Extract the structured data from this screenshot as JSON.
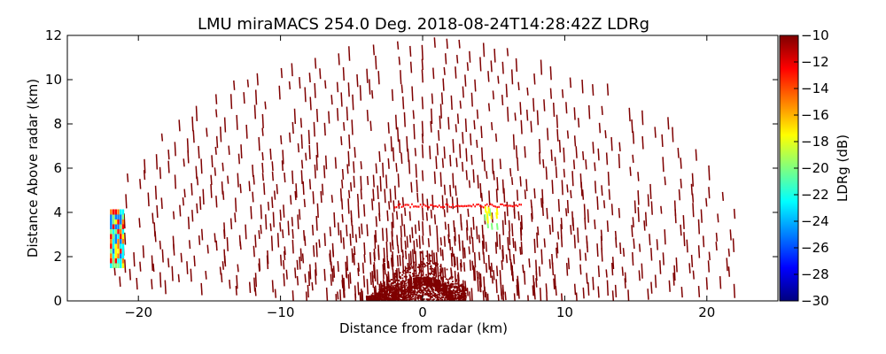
{
  "chart_data": {
    "type": "heatmap",
    "subtype": "RHI radar scan (LDR)",
    "title": "LMU miraMACS 254.0 Deg. 2018-08-24T14:28:42Z  LDRg",
    "xlabel": "Distance from radar (km)",
    "ylabel": "Distance Above radar  (km)",
    "xlim": [
      -25,
      25
    ],
    "ylim": [
      0,
      12
    ],
    "xticks": [
      -20,
      -10,
      0,
      10,
      20
    ],
    "yticks": [
      0,
      2,
      4,
      6,
      8,
      10,
      12
    ],
    "colorbar": {
      "label": "LDRg (dB)",
      "range": [
        -30,
        -10
      ],
      "ticks": [
        -30,
        -28,
        -26,
        -24,
        -22,
        -20,
        -18,
        -16,
        -14,
        -12,
        -10
      ],
      "colormap": [
        "#00007f",
        "#0000ff",
        "#007fff",
        "#00ffff",
        "#7fff7f",
        "#ffff00",
        "#ff7f00",
        "#ff0000",
        "#7f0000"
      ]
    },
    "features": [
      {
        "name": "dense near-radar clutter",
        "x_range_km": [
          -4,
          3
        ],
        "height_range_km": [
          0,
          2.5
        ],
        "ldr_db": -10
      },
      {
        "name": "melting layer band",
        "x_range_km": [
          -2,
          7
        ],
        "height_km": 4.3,
        "ldr_db": -12
      },
      {
        "name": "depolarized patch",
        "x_km": 4.8,
        "height_range_km": [
          3.5,
          4.3
        ],
        "ldr_db": -18
      },
      {
        "name": "far-left echo column",
        "x_km": -22,
        "height_range_km": [
          1.5,
          4.1
        ],
        "ldr_db_range": [
          -26,
          -12
        ]
      },
      {
        "name": "scattered background returns",
        "ldr_db": -10
      }
    ]
  }
}
